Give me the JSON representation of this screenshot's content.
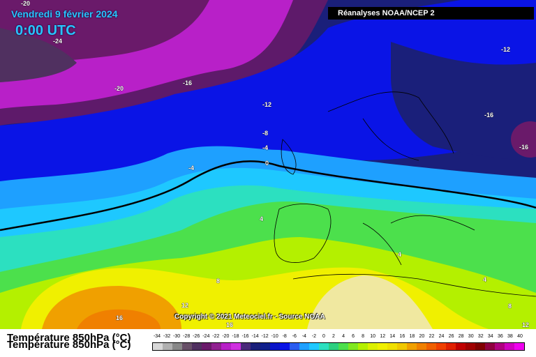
{
  "header": {
    "date": "Vendredi 9 février 2024",
    "time": "0:00 UTC",
    "source": "Réanalyses NOAA/NCEP 2"
  },
  "copyright": "Copyright © 2021 Meteociel.fr - Source NOAA",
  "footer": {
    "title": "Température 850hPa (°C)"
  },
  "colors": {
    "magenta": "#b820c8",
    "purple": "#5e1a6a",
    "navy": "#1a1f7a",
    "blue": "#0a14e6",
    "cyan": "#1ec8ff",
    "teal": "#2ce0c0",
    "green": "#4ce04c",
    "lime": "#b4f000",
    "yellow": "#f0f000",
    "orange": "#f0a000"
  },
  "isotherms": [
    {
      "label": "-20"
    },
    {
      "label": "-24"
    },
    {
      "label": "-20"
    },
    {
      "label": "-16"
    },
    {
      "label": "-12"
    },
    {
      "label": "-12"
    },
    {
      "label": "-16"
    },
    {
      "label": "-16"
    },
    {
      "label": "-8"
    },
    {
      "label": "-4"
    },
    {
      "label": "0"
    },
    {
      "label": "-4"
    },
    {
      "label": "4"
    },
    {
      "label": "4"
    },
    {
      "label": "8"
    },
    {
      "label": "4"
    },
    {
      "label": "12"
    },
    {
      "label": "8"
    },
    {
      "label": "16"
    },
    {
      "label": "16"
    },
    {
      "label": "12"
    }
  ],
  "legend": {
    "ticks": [
      "-34",
      "-32",
      "-30",
      "-28",
      "-26",
      "-24",
      "-22",
      "-20",
      "-18",
      "-16",
      "-14",
      "-12",
      "-10",
      "-8",
      "-6",
      "-4",
      "-2",
      "0",
      "2",
      "4",
      "6",
      "8",
      "10",
      "12",
      "14",
      "16",
      "18",
      "20",
      "22",
      "24",
      "26",
      "28",
      "30",
      "32",
      "34",
      "36",
      "38",
      "40"
    ],
    "colors": [
      "#d8d8d8",
      "#b0b0b0",
      "#888888",
      "#685068",
      "#503060",
      "#6a1a6a",
      "#902090",
      "#b820c8",
      "#d030e0",
      "#4a2a7a",
      "#1a1f7a",
      "#10208c",
      "#0a14c8",
      "#0a14e6",
      "#2a5cf0",
      "#1ea0ff",
      "#1ec8ff",
      "#2ce0c0",
      "#2cd080",
      "#4ce04c",
      "#80e820",
      "#b4f000",
      "#dcf000",
      "#f0f000",
      "#f0e000",
      "#f0c800",
      "#f0a000",
      "#f08000",
      "#f06000",
      "#f04000",
      "#e02000",
      "#c00000",
      "#a00000",
      "#800000",
      "#900040",
      "#b00080",
      "#d000c0",
      "#f000f0"
    ]
  }
}
